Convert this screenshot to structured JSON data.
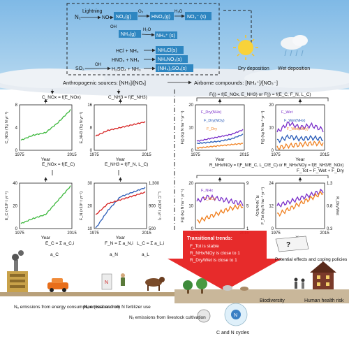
{
  "atmosphere": {
    "chem": {
      "lightning": "Lightning",
      "n2": "N₂",
      "no": "NO",
      "no2g": "NO₂(g)",
      "hno3g": "HNO₃(g)",
      "no3s": "NO₃⁻ (s)",
      "oh1": "OH",
      "nh3g": "NH₃(g)",
      "nh4s": "NH₄⁺ (s)",
      "o3": "O₃",
      "h2o1": "H₂O",
      "h2o2": "H₂O",
      "hcl": "HCl + NH₃",
      "hno3": "HNO₃ + NH₃",
      "so2": "SO₂",
      "oh2": "OH",
      "h2so4": "H₂SO₄ + NH₃",
      "nh4cl": "NH₄Cl(s)",
      "nh4no3": "NH₄NO₃(s)",
      "nh42so4": "(NH₄)₂SO₄(s)"
    },
    "dry_deposition": "Dry deposition",
    "wet_deposition": "Wet deposition",
    "anthropogenic_label": "Anthropogenic sources: [NH₃]/[NOₓ]",
    "airborne_label": "Airborne compounds: [NH₄⁺]/[NO₃⁻]"
  },
  "colors": {
    "sky": "#8fc4e8",
    "cloud": "#dfe6ee",
    "box_blue": "#2e86c1",
    "green": "#3db83d",
    "red": "#d62020",
    "blue": "#2a5cb8",
    "purple": "#7a2fc9",
    "orange": "#f07f1e",
    "arrow_red": "#e62020",
    "ground": "#8a6f4e"
  },
  "equations": {
    "c_nox": "C_NOx = f(E_NOx)",
    "c_nh3": "C_NH3 = f(E_NH3)",
    "e_nox": "E_NOx = f(E_C)",
    "e_nh3": "E_NH3 = f(F_N, L_C)",
    "f_top": "F(j) = f(E_NOx, E_NH3) or F(j) = f(E_C, F_N, L_C)",
    "ratio": "R_NHx/NOy = f(F_N/E_C, L_C/E_C) or R_NHx/NOy = f(E_NH3/E_NOx)",
    "ftot": "F_Tot = F_Wet + F_Dry",
    "ec_sum": "E_C = Σ a_C,i",
    "fn_sum": "F_N = Σ a_N,i",
    "lc_sum": "L_C = Σ a_L,i",
    "a_c": "a_C",
    "a_n": "a_N",
    "a_l": "a_L"
  },
  "charts": {
    "c_nox": {
      "ylabel": "C_NOx (Tg N yr⁻¹)",
      "xlabel": "Year",
      "xticks": [
        "1975",
        "2015"
      ],
      "yticks": [
        "0",
        "4",
        "8"
      ]
    },
    "c_nh3": {
      "ylabel": "E_NH3 (Tg N yr⁻¹)",
      "xlabel": "Year",
      "xticks": [
        "1975",
        "2015"
      ],
      "yticks": [
        "0",
        "8",
        "16"
      ]
    },
    "e_c": {
      "ylabel": "E_C (×10⁸ t yr⁻¹)",
      "xlabel": "Year",
      "xticks": [
        "1975",
        "2015"
      ],
      "yticks": [
        "0",
        "20",
        "40"
      ]
    },
    "f_n": {
      "ylabel": "F_N (×10⁹ t yr⁻¹)",
      "ylabel_right": "L_C (×10⁸ t yr⁻¹)",
      "xlabel": "Year",
      "xticks": [
        "1975",
        "2015"
      ],
      "yticks": [
        "10",
        "20",
        "30"
      ],
      "yticks_right": [
        "500",
        "900",
        "1,300"
      ]
    },
    "f_j": {
      "ylabel": "F(j) (kg N ha⁻¹ yr⁻¹)",
      "xlabel": "Year",
      "xticks": [
        "1975",
        "2015"
      ],
      "yticks": [
        "0",
        "10",
        "20"
      ],
      "legend": [
        "F_Dry(NHx)",
        "F_Dry(NOy)",
        "F_Dry"
      ]
    },
    "f_j_wet": {
      "ylabel": "F(j) (kg N ha⁻¹ yr⁻¹)",
      "xlabel": "Year",
      "xticks": [
        "1975",
        "2015"
      ],
      "yticks": [
        "0",
        "10",
        "20"
      ],
      "legend": [
        "F_Wet",
        "F_Wet(NHx)",
        "F_Wet(NOy)"
      ]
    },
    "f_nh": {
      "ylabel": "F(j) (kg N ha⁻¹ yr⁻¹)",
      "ylabel_right": "R_NHx/NOy",
      "xlabel": "Year",
      "xticks": [
        "1975",
        "2015"
      ],
      "yticks": [
        "0",
        "10",
        "20"
      ],
      "yticks_right": [
        "1",
        "5",
        "9"
      ],
      "legend": [
        "F_NHx",
        "F_NOy"
      ]
    },
    "f_tot": {
      "ylabel": "F_Tot (kg N ha⁻¹ yr⁻¹)",
      "ylabel_right": "R_Dry/Wet",
      "xlabel": "Year",
      "xticks": [
        "1975",
        "2015"
      ],
      "yticks": [
        "0",
        "12",
        "24"
      ],
      "yticks_right": [
        "0.3",
        "0.8",
        "1.3"
      ]
    }
  },
  "transitional": {
    "title": "Transitional trends:",
    "items": [
      "F_Tot is stable",
      "R_NHx/NOy is close to 1",
      "R_Dry/Wet is close to 1"
    ]
  },
  "potential_effects": "Potential effects and coping policies",
  "bottom": {
    "energy": "Nₓ emissions from energy consumption (coal and oil)",
    "fertilizer": "Nₓ emissions from N fertilizer use",
    "livestock": "Nₓ emissions from livestock cultivation",
    "biodiversity": "Biodiversity",
    "health": "Human health risk",
    "cycles": "C and N cycles",
    "n_label": "N"
  },
  "chart_data": [
    {
      "type": "line",
      "title": "",
      "xlabel": "Year",
      "ylabel": "C_NOx",
      "x": [
        1975,
        1985,
        1995,
        2005,
        2015
      ],
      "series": [
        {
          "values": [
            2,
            3,
            3.5,
            5.5,
            8
          ]
        }
      ],
      "ylim": [
        0,
        9
      ]
    },
    {
      "type": "line",
      "title": "",
      "xlabel": "Year",
      "ylabel": "E_NH3",
      "x": [
        1975,
        1985,
        1995,
        2005,
        2015
      ],
      "series": [
        {
          "values": [
            5,
            7,
            8,
            9,
            10
          ]
        }
      ],
      "ylim": [
        0,
        16
      ]
    },
    {
      "type": "line",
      "title": "",
      "xlabel": "Year",
      "ylabel": "E_C",
      "x": [
        1975,
        1985,
        1995,
        2005,
        2015
      ],
      "series": [
        {
          "values": [
            5,
            10,
            14,
            28,
            42
          ]
        }
      ],
      "ylim": [
        0,
        45
      ]
    },
    {
      "type": "line",
      "title": "",
      "xlabel": "Year",
      "ylabel": "F_N",
      "x": [
        1975,
        1985,
        1995,
        2005,
        2015
      ],
      "series": [
        {
          "values": [
            10,
            18,
            24,
            26,
            28
          ]
        },
        {
          "values": [
            600,
            750,
            800,
            850,
            900
          ]
        }
      ],
      "ylim": [
        10,
        30
      ]
    },
    {
      "type": "line",
      "title": "",
      "xlabel": "Year",
      "ylabel": "F(j)",
      "x": [
        1975,
        1985,
        1995,
        2005,
        2015
      ],
      "series": [
        {
          "name": "F_Dry",
          "values": [
            4,
            5,
            6,
            7,
            9
          ]
        },
        {
          "name": "F_Dry(NHx)",
          "values": [
            3,
            3.5,
            4,
            5,
            7
          ]
        },
        {
          "name": "F_Dry(NOy)",
          "values": [
            1,
            1.5,
            2,
            2.5,
            3
          ]
        }
      ],
      "ylim": [
        0,
        20
      ]
    },
    {
      "type": "line",
      "title": "",
      "xlabel": "Year",
      "ylabel": "F(j)",
      "x": [
        1975,
        1985,
        1995,
        2005,
        2015
      ],
      "series": [
        {
          "name": "F_Wet",
          "values": [
            8,
            12,
            10,
            11,
            9
          ]
        },
        {
          "name": "F_Wet(NHx)",
          "values": [
            4,
            6,
            5,
            5.5,
            5
          ]
        },
        {
          "name": "F_Wet(NOy)",
          "values": [
            1,
            2,
            2.5,
            3,
            3
          ]
        }
      ],
      "ylim": [
        0,
        20
      ]
    },
    {
      "type": "line",
      "title": "",
      "xlabel": "Year",
      "ylabel": "F(j)",
      "x": [
        1975,
        1985,
        1995,
        2005,
        2015
      ],
      "series": [
        {
          "name": "F_NHx",
          "values": [
            12,
            14,
            13,
            12,
            11
          ]
        },
        {
          "name": "F_NOy",
          "values": [
            3,
            5,
            7,
            9,
            10
          ]
        }
      ],
      "ylim": [
        0,
        20
      ]
    },
    {
      "type": "line",
      "title": "",
      "xlabel": "Year",
      "ylabel": "F_Tot",
      "x": [
        1975,
        1985,
        1995,
        2005,
        2015
      ],
      "series": [
        {
          "values": [
            12,
            14,
            16,
            18,
            20
          ]
        },
        {
          "values": [
            0.3,
            0.5,
            0.7,
            0.9,
            1.1
          ]
        }
      ],
      "ylim": [
        0,
        24
      ]
    }
  ]
}
